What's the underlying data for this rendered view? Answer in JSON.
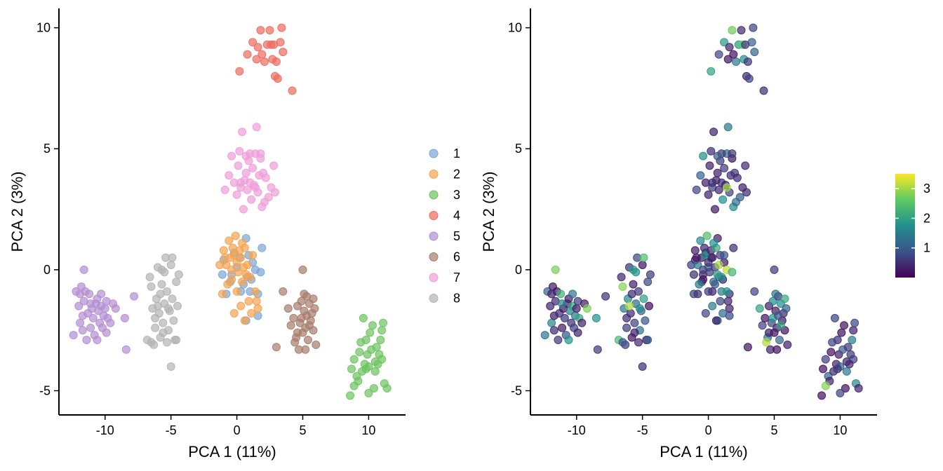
{
  "chart_data": [
    {
      "type": "scatter",
      "xlabel": "PCA 1 (11%)",
      "ylabel": "PCA 2 (3%)",
      "xlim": [
        -13.5,
        12.8
      ],
      "ylim": [
        -6.0,
        10.8
      ],
      "xticks": [
        -10,
        -5,
        0,
        5,
        10
      ],
      "xtick_labels": [
        "-10",
        "-5",
        "0",
        "5",
        "10"
      ],
      "yticks": [
        -5,
        0,
        5,
        10
      ],
      "ytick_labels": [
        "-5",
        "0",
        "5",
        "10"
      ],
      "grid": false,
      "legend": {
        "placement": "right",
        "entries": [
          "1",
          "2",
          "3",
          "4",
          "5",
          "6",
          "7",
          "8"
        ]
      },
      "series": [
        {
          "name": "1",
          "color": "#7aa6d6",
          "points": [
            [
              -1.1,
              -0.2
            ],
            [
              -1.0,
              0.4
            ],
            [
              -0.8,
              -1.0
            ],
            [
              -0.5,
              -0.5
            ],
            [
              0.0,
              0.1
            ],
            [
              0.2,
              0.5
            ],
            [
              0.5,
              -0.6
            ],
            [
              0.7,
              1.3
            ],
            [
              0.8,
              -0.3
            ],
            [
              1.0,
              -0.9
            ],
            [
              1.2,
              0.3
            ],
            [
              1.4,
              0.0
            ],
            [
              1.6,
              -1.0
            ],
            [
              1.8,
              -0.1
            ],
            [
              1.9,
              0.9
            ],
            [
              0.7,
              -2.1
            ],
            [
              1.6,
              -1.9
            ],
            [
              0.3,
              -0.9
            ],
            [
              -0.4,
              -0.2
            ],
            [
              0.9,
              0.6
            ],
            [
              1.1,
              -0.4
            ],
            [
              -0.2,
              0.7
            ]
          ]
        },
        {
          "name": "2",
          "color": "#f5a24e",
          "points": [
            [
              -1.3,
              0.2
            ],
            [
              -1.0,
              0.8
            ],
            [
              -0.8,
              0.2
            ],
            [
              -0.6,
              1.2
            ],
            [
              -0.5,
              0.5
            ],
            [
              -0.4,
              -0.4
            ],
            [
              -0.3,
              0.9
            ],
            [
              -0.2,
              0.6
            ],
            [
              -0.1,
              1.4
            ],
            [
              0.0,
              0.3
            ],
            [
              0.1,
              -0.1
            ],
            [
              0.2,
              0.8
            ],
            [
              0.3,
              0.5
            ],
            [
              0.4,
              -0.5
            ],
            [
              0.5,
              0.1
            ],
            [
              0.6,
              0.9
            ],
            [
              0.8,
              0.2
            ],
            [
              1.0,
              -0.3
            ],
            [
              1.2,
              0.6
            ],
            [
              1.5,
              -1.3
            ],
            [
              1.6,
              -1.6
            ],
            [
              1.4,
              -0.9
            ],
            [
              0.9,
              -1.3
            ],
            [
              0.6,
              -2.1
            ],
            [
              0.3,
              -1.5
            ],
            [
              -0.2,
              -1.8
            ],
            [
              -1.1,
              -1.0
            ],
            [
              -0.7,
              -0.6
            ],
            [
              0.0,
              -0.9
            ],
            [
              1.1,
              -1.8
            ],
            [
              -0.9,
              0.5
            ],
            [
              0.4,
              1.1
            ],
            [
              0.7,
              -0.2
            ],
            [
              -0.4,
              0.0
            ]
          ]
        },
        {
          "name": "3",
          "color": "#6cc35f",
          "points": [
            [
              8.6,
              -5.2
            ],
            [
              8.7,
              -4.1
            ],
            [
              8.9,
              -3.7
            ],
            [
              9.1,
              -4.4
            ],
            [
              9.3,
              -3.4
            ],
            [
              9.5,
              -4.2
            ],
            [
              9.7,
              -3.9
            ],
            [
              9.9,
              -3.5
            ],
            [
              10.0,
              -4.0
            ],
            [
              10.1,
              -2.6
            ],
            [
              10.2,
              -3.3
            ],
            [
              10.4,
              -4.9
            ],
            [
              10.5,
              -3.8
            ],
            [
              10.6,
              -3.2
            ],
            [
              10.8,
              -3.5
            ],
            [
              11.0,
              -3.7
            ],
            [
              11.2,
              -4.7
            ],
            [
              11.4,
              -4.9
            ],
            [
              9.6,
              -2.0
            ],
            [
              10.3,
              -2.3
            ],
            [
              11.0,
              -2.5
            ],
            [
              9.8,
              -2.9
            ],
            [
              9.2,
              -4.6
            ],
            [
              10.0,
              -5.1
            ],
            [
              10.7,
              -3.9
            ],
            [
              9.4,
              -3.0
            ],
            [
              10.9,
              -2.9
            ],
            [
              8.9,
              -4.8
            ],
            [
              11.1,
              -2.2
            ],
            [
              10.5,
              -4.2
            ],
            [
              9.8,
              -4.1
            ]
          ]
        },
        {
          "name": "4",
          "color": "#ec6b5e",
          "points": [
            [
              0.2,
              8.2
            ],
            [
              0.8,
              8.9
            ],
            [
              1.2,
              9.4
            ],
            [
              1.5,
              8.7
            ],
            [
              1.8,
              9.9
            ],
            [
              2.1,
              8.6
            ],
            [
              2.3,
              9.3
            ],
            [
              2.5,
              9.9
            ],
            [
              2.7,
              8.7
            ],
            [
              2.9,
              8.0
            ],
            [
              3.1,
              7.9
            ],
            [
              3.3,
              9.4
            ],
            [
              3.5,
              9.0
            ],
            [
              4.2,
              7.4
            ],
            [
              1.9,
              8.9
            ],
            [
              2.6,
              9.3
            ],
            [
              1.6,
              9.2
            ],
            [
              3.0,
              8.6
            ],
            [
              2.8,
              9.3
            ],
            [
              3.4,
              10.0
            ]
          ]
        },
        {
          "name": "5",
          "color": "#b48ed1",
          "points": [
            [
              -12.4,
              -2.7
            ],
            [
              -12.2,
              -0.9
            ],
            [
              -12.0,
              -1.5
            ],
            [
              -11.9,
              -2.2
            ],
            [
              -11.8,
              -0.7
            ],
            [
              -11.7,
              -1.9
            ],
            [
              -11.6,
              -1.3
            ],
            [
              -11.5,
              -0.9
            ],
            [
              -11.4,
              -2.9
            ],
            [
              -11.3,
              -1.8
            ],
            [
              -11.2,
              -1.0
            ],
            [
              -11.1,
              -2.4
            ],
            [
              -11.0,
              -1.6
            ],
            [
              -10.9,
              -2.0
            ],
            [
              -10.8,
              -2.7
            ],
            [
              -10.7,
              -1.4
            ],
            [
              -10.6,
              -1.2
            ],
            [
              -10.5,
              -1.7
            ],
            [
              -10.4,
              -2.2
            ],
            [
              -10.3,
              -1.5
            ],
            [
              -10.2,
              -2.4
            ],
            [
              -10.1,
              -1.9
            ],
            [
              -10.0,
              -1.6
            ],
            [
              -9.9,
              -1.3
            ],
            [
              -9.8,
              -2.0
            ],
            [
              -9.6,
              -2.2
            ],
            [
              -9.4,
              -1.4
            ],
            [
              -9.2,
              -1.6
            ],
            [
              -8.5,
              -2.0
            ],
            [
              -7.8,
              -1.1
            ],
            [
              -8.4,
              -3.3
            ],
            [
              -11.6,
              0.0
            ],
            [
              -11.9,
              -1.0
            ],
            [
              -11.1,
              -1.4
            ],
            [
              -9.9,
              -2.6
            ],
            [
              -10.6,
              -2.9
            ],
            [
              -11.7,
              -2.5
            ],
            [
              -10.3,
              -1.0
            ]
          ]
        },
        {
          "name": "6",
          "color": "#a67c6b",
          "points": [
            [
              3.0,
              -3.2
            ],
            [
              3.5,
              -0.9
            ],
            [
              3.9,
              -1.6
            ],
            [
              4.1,
              -2.3
            ],
            [
              4.3,
              -2.0
            ],
            [
              4.5,
              -2.8
            ],
            [
              4.6,
              -1.5
            ],
            [
              4.7,
              -3.3
            ],
            [
              4.8,
              -2.2
            ],
            [
              4.9,
              -1.3
            ],
            [
              5.0,
              -2.6
            ],
            [
              5.1,
              -1.7
            ],
            [
              5.2,
              -2.4
            ],
            [
              5.3,
              -1.1
            ],
            [
              5.4,
              -2.9
            ],
            [
              5.5,
              -1.4
            ],
            [
              5.6,
              -2.1
            ],
            [
              5.7,
              -1.8
            ],
            [
              5.8,
              -2.5
            ],
            [
              5.9,
              -1.6
            ],
            [
              6.0,
              -3.1
            ],
            [
              5.0,
              0.0
            ],
            [
              4.4,
              -3.0
            ],
            [
              5.2,
              -3.3
            ],
            [
              5.8,
              -1.2
            ],
            [
              4.9,
              -2.0
            ],
            [
              5.5,
              -2.3
            ],
            [
              4.6,
              -2.6
            ],
            [
              5.3,
              -1.9
            ],
            [
              5.1,
              -1.0
            ]
          ]
        },
        {
          "name": "7",
          "color": "#ee9ed8",
          "points": [
            [
              -0.9,
              3.3
            ],
            [
              -0.6,
              3.9
            ],
            [
              -0.4,
              4.7
            ],
            [
              -0.2,
              3.6
            ],
            [
              0.0,
              3.1
            ],
            [
              0.1,
              4.3
            ],
            [
              0.2,
              4.9
            ],
            [
              0.3,
              3.4
            ],
            [
              0.4,
              5.7
            ],
            [
              0.5,
              2.5
            ],
            [
              0.6,
              3.7
            ],
            [
              0.7,
              4.0
            ],
            [
              0.8,
              3.3
            ],
            [
              0.9,
              4.5
            ],
            [
              1.0,
              3.6
            ],
            [
              1.1,
              2.9
            ],
            [
              1.2,
              4.2
            ],
            [
              1.3,
              3.5
            ],
            [
              1.4,
              4.8
            ],
            [
              1.5,
              5.9
            ],
            [
              1.6,
              3.2
            ],
            [
              1.7,
              3.9
            ],
            [
              1.8,
              4.6
            ],
            [
              1.9,
              2.6
            ],
            [
              2.0,
              4.0
            ],
            [
              2.2,
              3.8
            ],
            [
              2.4,
              3.0
            ],
            [
              2.6,
              3.4
            ],
            [
              2.8,
              4.3
            ],
            [
              2.1,
              2.8
            ],
            [
              2.9,
              3.2
            ],
            [
              0.3,
              3.6
            ],
            [
              1.0,
              4.8
            ],
            [
              1.8,
              4.8
            ],
            [
              0.7,
              4.7
            ],
            [
              1.4,
              3.4
            ]
          ]
        },
        {
          "name": "8",
          "color": "#b3b3b3",
          "points": [
            [
              -6.8,
              -2.9
            ],
            [
              -6.6,
              -0.3
            ],
            [
              -6.5,
              -0.7
            ],
            [
              -6.4,
              -1.6
            ],
            [
              -6.3,
              -3.1
            ],
            [
              -6.2,
              -2.4
            ],
            [
              -6.1,
              -1.2
            ],
            [
              -6.0,
              0.1
            ],
            [
              -5.9,
              -1.8
            ],
            [
              -5.8,
              -2.8
            ],
            [
              -5.7,
              -0.6
            ],
            [
              -5.6,
              -2.2
            ],
            [
              -5.5,
              -1.4
            ],
            [
              -5.4,
              0.5
            ],
            [
              -5.3,
              -0.9
            ],
            [
              -5.2,
              -2.5
            ],
            [
              -5.1,
              -1.7
            ],
            [
              -5.0,
              0.2
            ],
            [
              -4.9,
              -1.2
            ],
            [
              -4.8,
              -2.1
            ],
            [
              -4.7,
              -2.9
            ],
            [
              -4.6,
              -0.5
            ],
            [
              -4.5,
              -1.5
            ],
            [
              -5.0,
              -4.0
            ],
            [
              -4.6,
              -2.9
            ],
            [
              -5.3,
              -3.0
            ],
            [
              -5.8,
              -1.0
            ],
            [
              -6.2,
              -2.0
            ],
            [
              -5.5,
              -0.1
            ],
            [
              -4.9,
              0.5
            ],
            [
              -5.2,
              -1.6
            ],
            [
              -6.5,
              -3.0
            ],
            [
              -5.6,
              -2.6
            ],
            [
              -4.4,
              -0.2
            ],
            [
              -5.7,
              0.0
            ],
            [
              -6.0,
              -1.5
            ]
          ]
        }
      ]
    },
    {
      "type": "scatter",
      "xlabel": "PCA 1 (11%)",
      "ylabel": "PCA 2 (3%)",
      "xlim": [
        -13.5,
        12.8
      ],
      "ylim": [
        -6.0,
        10.8
      ],
      "xticks": [
        -10,
        -5,
        0,
        5,
        10
      ],
      "xtick_labels": [
        "-10",
        "-5",
        "0",
        "5",
        "10"
      ],
      "yticks": [
        -5,
        0,
        5,
        10
      ],
      "ytick_labels": [
        "-5",
        "0",
        "5",
        "10"
      ],
      "grid": false,
      "colorbar": {
        "placement": "right",
        "ticks": [
          1,
          2,
          3
        ],
        "tick_labels": [
          "1",
          "2",
          "3"
        ],
        "range": [
          0,
          3.5
        ],
        "colormap": "viridis"
      },
      "color_by_value": true,
      "note_alpha": 0.7
    }
  ]
}
